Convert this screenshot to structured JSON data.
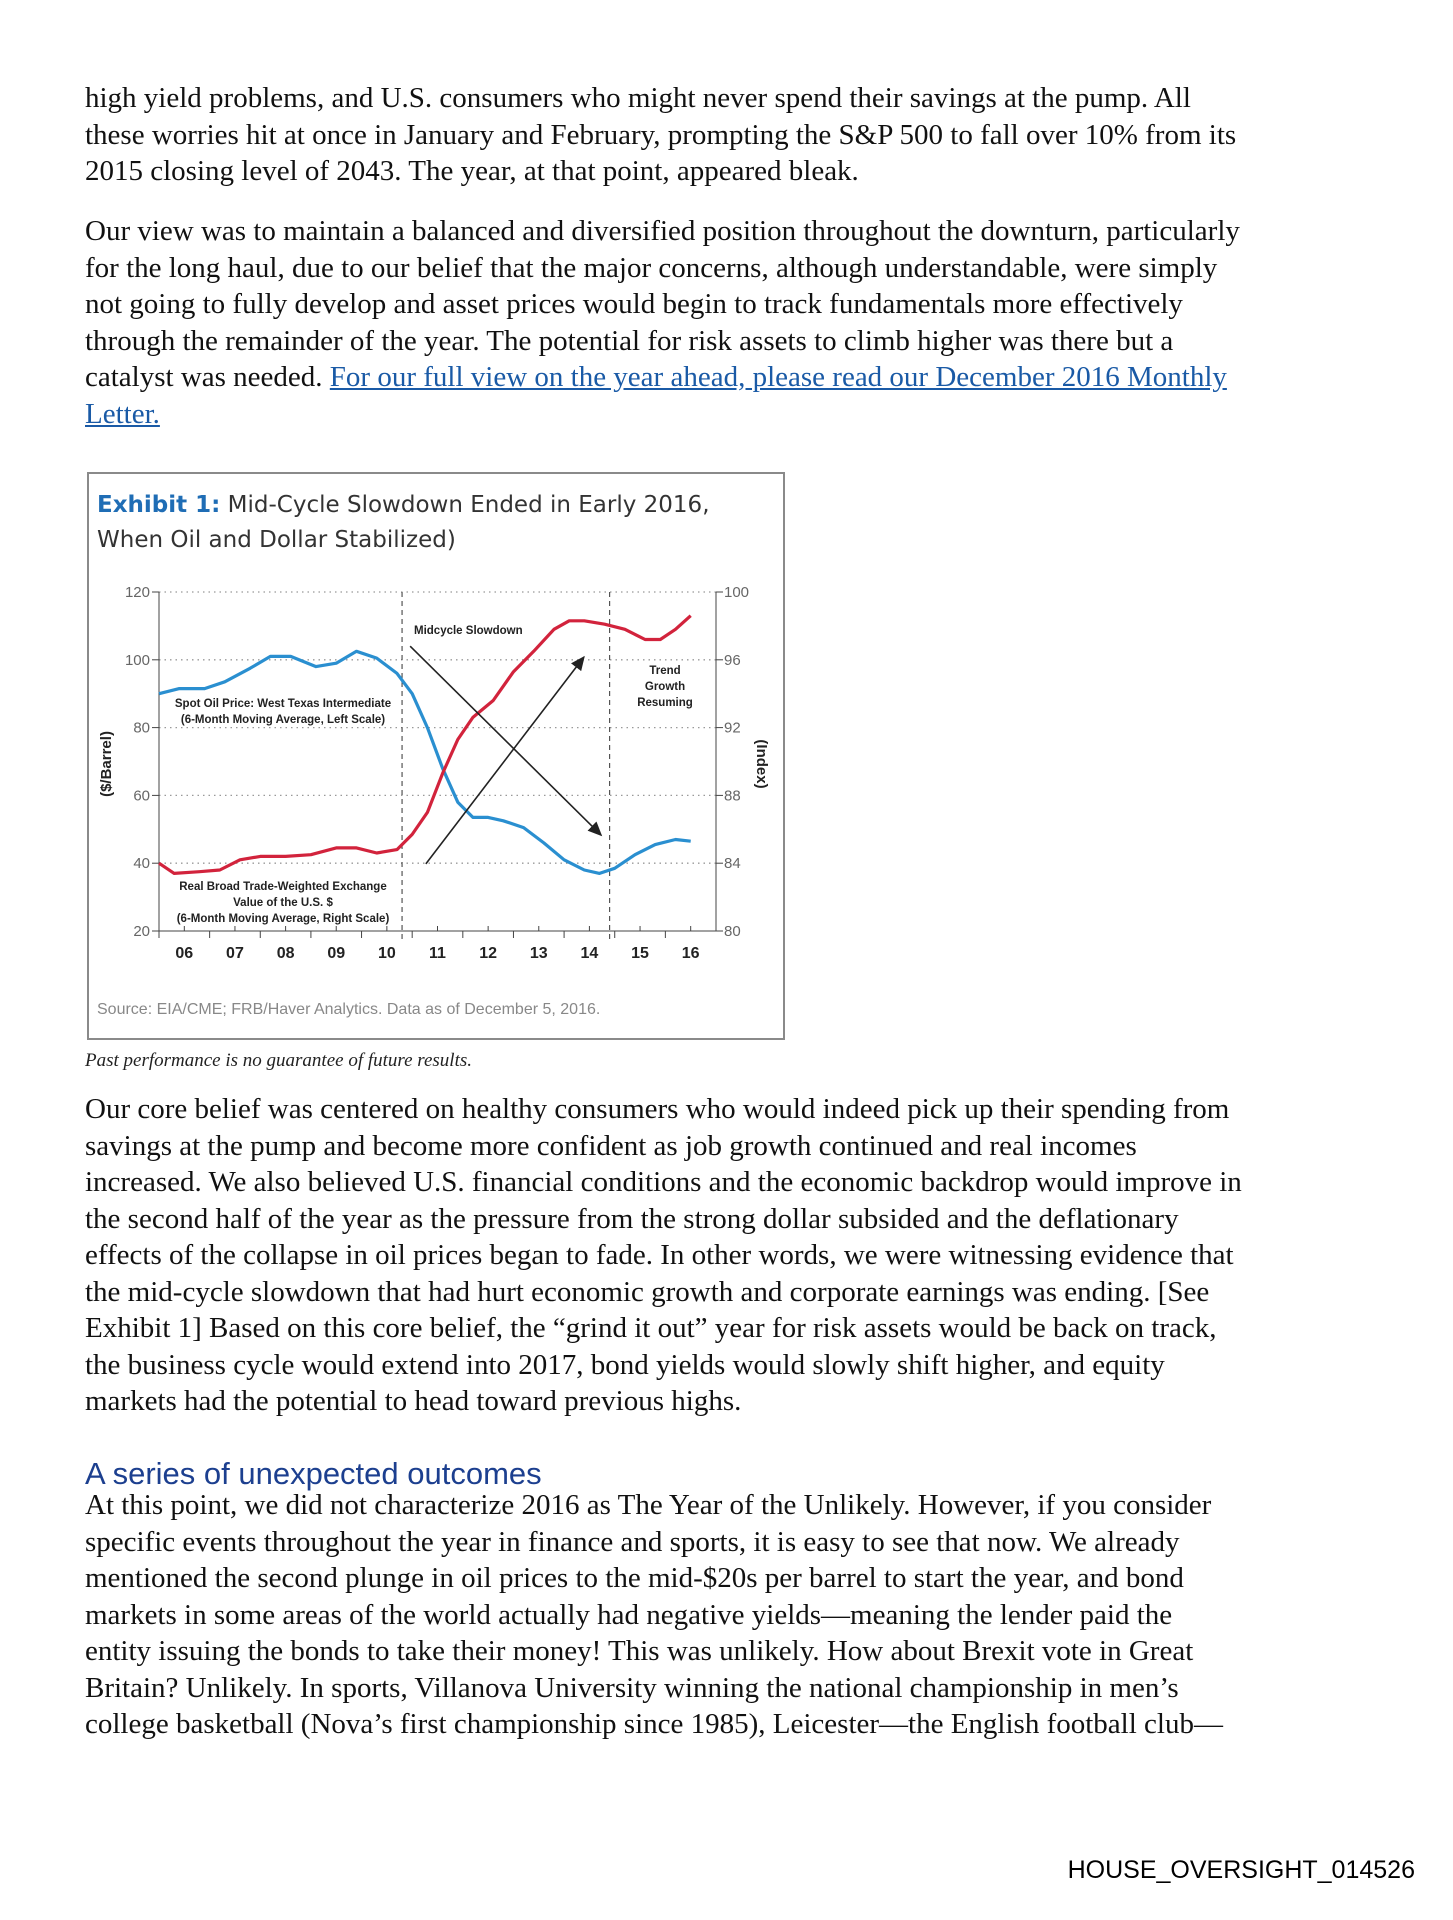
{
  "paragraphs": [
    {
      "top": 0,
      "lines": [
        [
          {
            "t": "high yield problems, and U.S. consumers who might never spend their savings at the pump. All"
          }
        ],
        [
          {
            "t": "these worries hit at once in January and February, prompting the S&P 500 to fall over 10% from its"
          }
        ],
        [
          {
            "t": "2015 closing level of 2043. The year, at that point, appeared bleak."
          }
        ]
      ]
    },
    {
      "lines": [
        [
          {
            "t": "Our view was to maintain a balanced and diversified position throughout the downturn, particularly"
          }
        ],
        [
          {
            "t": "for the long haul, due to our belief that the major concerns, although understandable, were simply"
          }
        ],
        [
          {
            "t": "not going to fully develop and asset prices would begin to track fundamentals more effectively"
          }
        ],
        [
          {
            "t": "through the remainder of the year. The potential for risk assets to climb higher was there but a"
          }
        ],
        [
          {
            "t": "catalyst was needed. "
          },
          {
            "t": "For our full view on the year ahead, please read our December 2016 Monthly",
            "link": true
          }
        ],
        [
          {
            "t": "Letter.",
            "link": true
          }
        ]
      ]
    },
    {
      "lines": [
        [
          {
            "t": "Our core belief was centered on healthy consumers who would indeed pick up their spending from"
          }
        ],
        [
          {
            "t": "savings at the pump and become more confident as job growth continued and real incomes"
          }
        ],
        [
          {
            "t": "increased. We also believed U.S. financial conditions and the economic backdrop would improve in"
          }
        ],
        [
          {
            "t": "the second half of the year as the pressure from the strong dollar subsided and the deflationary"
          }
        ],
        [
          {
            "t": "effects of the collapse in oil prices began to fade. In other words, we were witnessing evidence that"
          }
        ],
        [
          {
            "t": "the mid-cycle slowdown that had hurt economic growth and corporate earnings was ending. [See"
          }
        ],
        [
          {
            "t": "Exhibit 1] Based on this core belief, the “grind it out” year for risk assets would be back on track,"
          }
        ],
        [
          {
            "t": "the business cycle would extend into 2017, bond yields would slowly shift higher, and equity"
          }
        ],
        [
          {
            "t": "markets had the potential to head toward previous highs."
          }
        ]
      ]
    },
    {
      "lines": [
        [
          {
            "t": "At this point, we did not characterize 2016 as The Year of the Unlikely. However, if you consider"
          }
        ],
        [
          {
            "t": "specific events throughout the year in finance and sports, it is easy to see that now. We already"
          }
        ],
        [
          {
            "t": "mentioned the second plunge in oil prices to the mid-$20s per barrel to start the year, and bond"
          }
        ],
        [
          {
            "t": "markets in some areas of the world actually had negative yields—meaning the lender paid the"
          }
        ],
        [
          {
            "t": "entity issuing the bonds to take their money! This was unlikely. How about Brexit vote in Great"
          }
        ],
        [
          {
            "t": "Britain? Unlikely. In sports, Villanova University winning the national championship in men’s"
          }
        ],
        [
          {
            "t": "college basketball (Nova’s first championship since 1985), Leicester—the English football club—"
          }
        ]
      ]
    }
  ],
  "heading": "A series of unexpected outcomes",
  "caption": "Past performance is no guarantee of future results.",
  "footer": "HOUSE_OVERSIGHT_014526",
  "colors": {
    "link": "#1a5aa6",
    "heading": "#1c3f8f",
    "oil": "#2a8fd0",
    "dollar": "#d2233c",
    "exhibit": "#1f6db5"
  },
  "chart_data": {
    "type": "line",
    "title_prefix": "Exhibit 1:",
    "title_line1": "Mid-Cycle Slowdown Ended in Early 2016,",
    "title_line2": "When Oil and Dollar Stabilized)",
    "ylabel_left": "($/Barrel)",
    "ylabel_right": "(Index)",
    "ylim_left": [
      20,
      120
    ],
    "ylim_right": [
      80,
      100
    ],
    "yticks_left": [
      "120",
      "100",
      "80",
      "60",
      "40",
      "20"
    ],
    "yticks_right": [
      "100",
      "96",
      "92",
      "88",
      "84",
      "80"
    ],
    "xlim": [
      2006,
      2016.85
    ],
    "xtick_labels": [
      "06",
      "07",
      "08",
      "09",
      "10",
      "11",
      "12",
      "13",
      "14",
      "15",
      "16"
    ],
    "grid": "dotted horizontal",
    "vlines": [
      2010.8,
      2014.9
    ],
    "series": [
      {
        "key": "oil",
        "axis": "left",
        "label_lines": [
          "Spot Oil Price: West Texas Intermediate",
          "(6-Month Moving Average, Left Scale)"
        ],
        "x": [
          2006,
          2006.4,
          2006.9,
          2007.3,
          2007.8,
          2008.2,
          2008.6,
          2009.1,
          2009.5,
          2009.9,
          2010.3,
          2010.7,
          2011.0,
          2011.3,
          2011.6,
          2011.9,
          2012.2,
          2012.5,
          2012.8,
          2013.2,
          2013.6,
          2014.0,
          2014.4,
          2014.7,
          2015.0,
          2015.4,
          2015.8,
          2016.2,
          2016.5
        ],
        "y": [
          90,
          91.5,
          91.5,
          93.5,
          97.5,
          101,
          101,
          98,
          99,
          102.5,
          100.5,
          96,
          90,
          80,
          68,
          58,
          53.5,
          53.5,
          52.5,
          50.5,
          46,
          41,
          38,
          37,
          38.5,
          42.5,
          45.5,
          47,
          46.5
        ]
      },
      {
        "key": "dollar",
        "axis": "right",
        "label_lines": [
          "Real Broad Trade-Weighted Exchange",
          "Value of the U.S. $",
          "(6-Month Moving Average, Right Scale)"
        ],
        "x": [
          2006,
          2006.3,
          2006.8,
          2007.2,
          2007.6,
          2008.0,
          2008.5,
          2009.0,
          2009.5,
          2009.9,
          2010.3,
          2010.7,
          2011.0,
          2011.3,
          2011.6,
          2011.9,
          2012.2,
          2012.6,
          2013.0,
          2013.4,
          2013.8,
          2014.1,
          2014.4,
          2014.8,
          2015.2,
          2015.6,
          2015.9,
          2016.2,
          2016.5
        ],
        "y": [
          84,
          83.4,
          83.5,
          83.6,
          84.2,
          84.4,
          84.4,
          84.5,
          84.9,
          84.9,
          84.6,
          84.8,
          85.7,
          87,
          89.3,
          91.3,
          92.6,
          93.6,
          95.3,
          96.5,
          97.8,
          98.3,
          98.3,
          98.1,
          97.8,
          97.2,
          97.2,
          97.8,
          98.6
        ]
      }
    ],
    "annotations": {
      "midcycle": "Midcycle Slowdown",
      "trend": [
        "Trend",
        "Growth",
        "Resuming"
      ]
    },
    "arrows": [
      {
        "from": [
          2010.96,
          104
        ],
        "to": [
          2014.73,
          48.3
        ]
      },
      {
        "from": [
          2011.27,
          39.8
        ],
        "to": [
          2014.39,
          100.8
        ]
      }
    ],
    "source": "Source: EIA/CME; FRB/Haver Analytics. Data as of December 5, 2016."
  }
}
